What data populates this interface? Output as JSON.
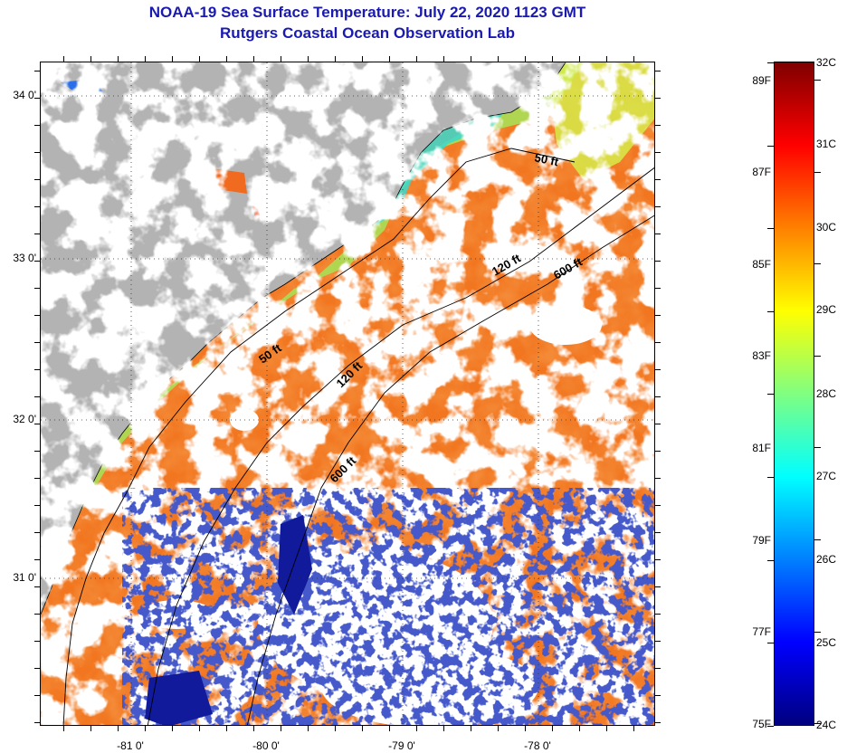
{
  "header": {
    "title": "NOAA-19 Sea Surface Temperature:  July 22, 2020 1123 GMT",
    "subtitle": "Rutgers Coastal Ocean Observation Lab"
  },
  "map": {
    "latitude_labels": [
      "34 0'",
      "33 0'",
      "32 0'",
      "31 0'"
    ],
    "longitude_labels": [
      "-81 0'",
      "-80 0'",
      "-79 0'",
      "-78 0'"
    ],
    "isobath_labels": [
      "50 ft",
      "120 ft",
      "600 ft",
      "50 ft",
      "120 ft",
      "600 ft"
    ],
    "colors": {
      "land": "#b3b3b3",
      "cloud": "#ffffff",
      "warm_water": "#f26a1b",
      "hot_water": "#e8331a",
      "cool_near_shore": "#8fdc4e",
      "cyan_water": "#35d8d8",
      "cold_patches": "#101a9a"
    }
  },
  "colorbar": {
    "fahrenheit_labels": [
      "89F",
      "87F",
      "85F",
      "83F",
      "81F",
      "79F",
      "77F",
      "75F"
    ],
    "celsius_labels": [
      "32C",
      "31C",
      "30C",
      "29C",
      "28C",
      "27C",
      "26C",
      "25C",
      "24C"
    ],
    "range_c": [
      24,
      32
    ],
    "range_f": [
      75,
      89.6
    ],
    "gradient": [
      "#00007f",
      "#0000ff",
      "#0080ff",
      "#00ffff",
      "#80ff80",
      "#ffff00",
      "#ff8000",
      "#ff0000",
      "#7f0000"
    ]
  }
}
